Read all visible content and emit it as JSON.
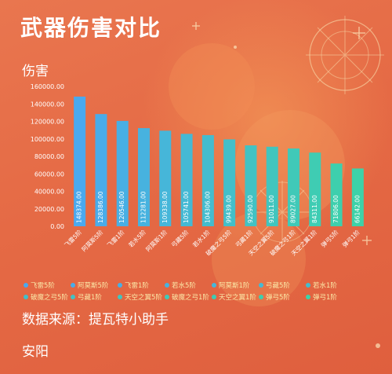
{
  "header": {
    "title": "武器伤害对比",
    "y_axis_label": "伤害"
  },
  "source_text": "数据来源：提瓦特小助手",
  "footer_text": "安阳",
  "colors": {
    "background": "#e56a45",
    "bar_start": "#4aa9ef",
    "bar_end": "#3dd2a8",
    "text": "#ffffff",
    "legend_text": "#fbe9a8"
  },
  "chart_data": {
    "type": "bar",
    "title": "武器伤害对比",
    "ylabel": "伤害",
    "xlabel": "",
    "ylim": [
      0,
      160000
    ],
    "ytick_values": [
      0,
      20000,
      40000,
      60000,
      80000,
      100000,
      120000,
      140000,
      160000
    ],
    "ytick_labels": [
      "0.00",
      "20000.00",
      "40000.00",
      "60000.00",
      "80000.00",
      "100000.00",
      "120000.00",
      "140000.00",
      "160000.00"
    ],
    "grid": false,
    "legend_position": "bottom",
    "categories": [
      "飞雷5阶",
      "阿莫斯5阶",
      "飞雷1阶",
      "若水5阶",
      "阿莫斯1阶",
      "弓藏5阶",
      "若水1阶",
      "破魔之弓5阶",
      "弓藏1阶",
      "天空之翼5阶",
      "破魔之弓1阶",
      "天空之翼1阶",
      "弹弓5阶",
      "弹弓1阶"
    ],
    "values": [
      148374.0,
      128386.0,
      120546.0,
      112281.0,
      109338.0,
      105741.0,
      104306.0,
      99439.0,
      92590.0,
      91011.0,
      89027.0,
      84311.0,
      71806.0,
      66142.0
    ],
    "value_labels": [
      "148374.00",
      "128386.00",
      "120546.00",
      "112281.00",
      "109338.00",
      "105741.00",
      "104306.00",
      "99439.00",
      "92590.00",
      "91011.00",
      "89027.00",
      "84311.00",
      "71806.00",
      "66142.00"
    ]
  }
}
